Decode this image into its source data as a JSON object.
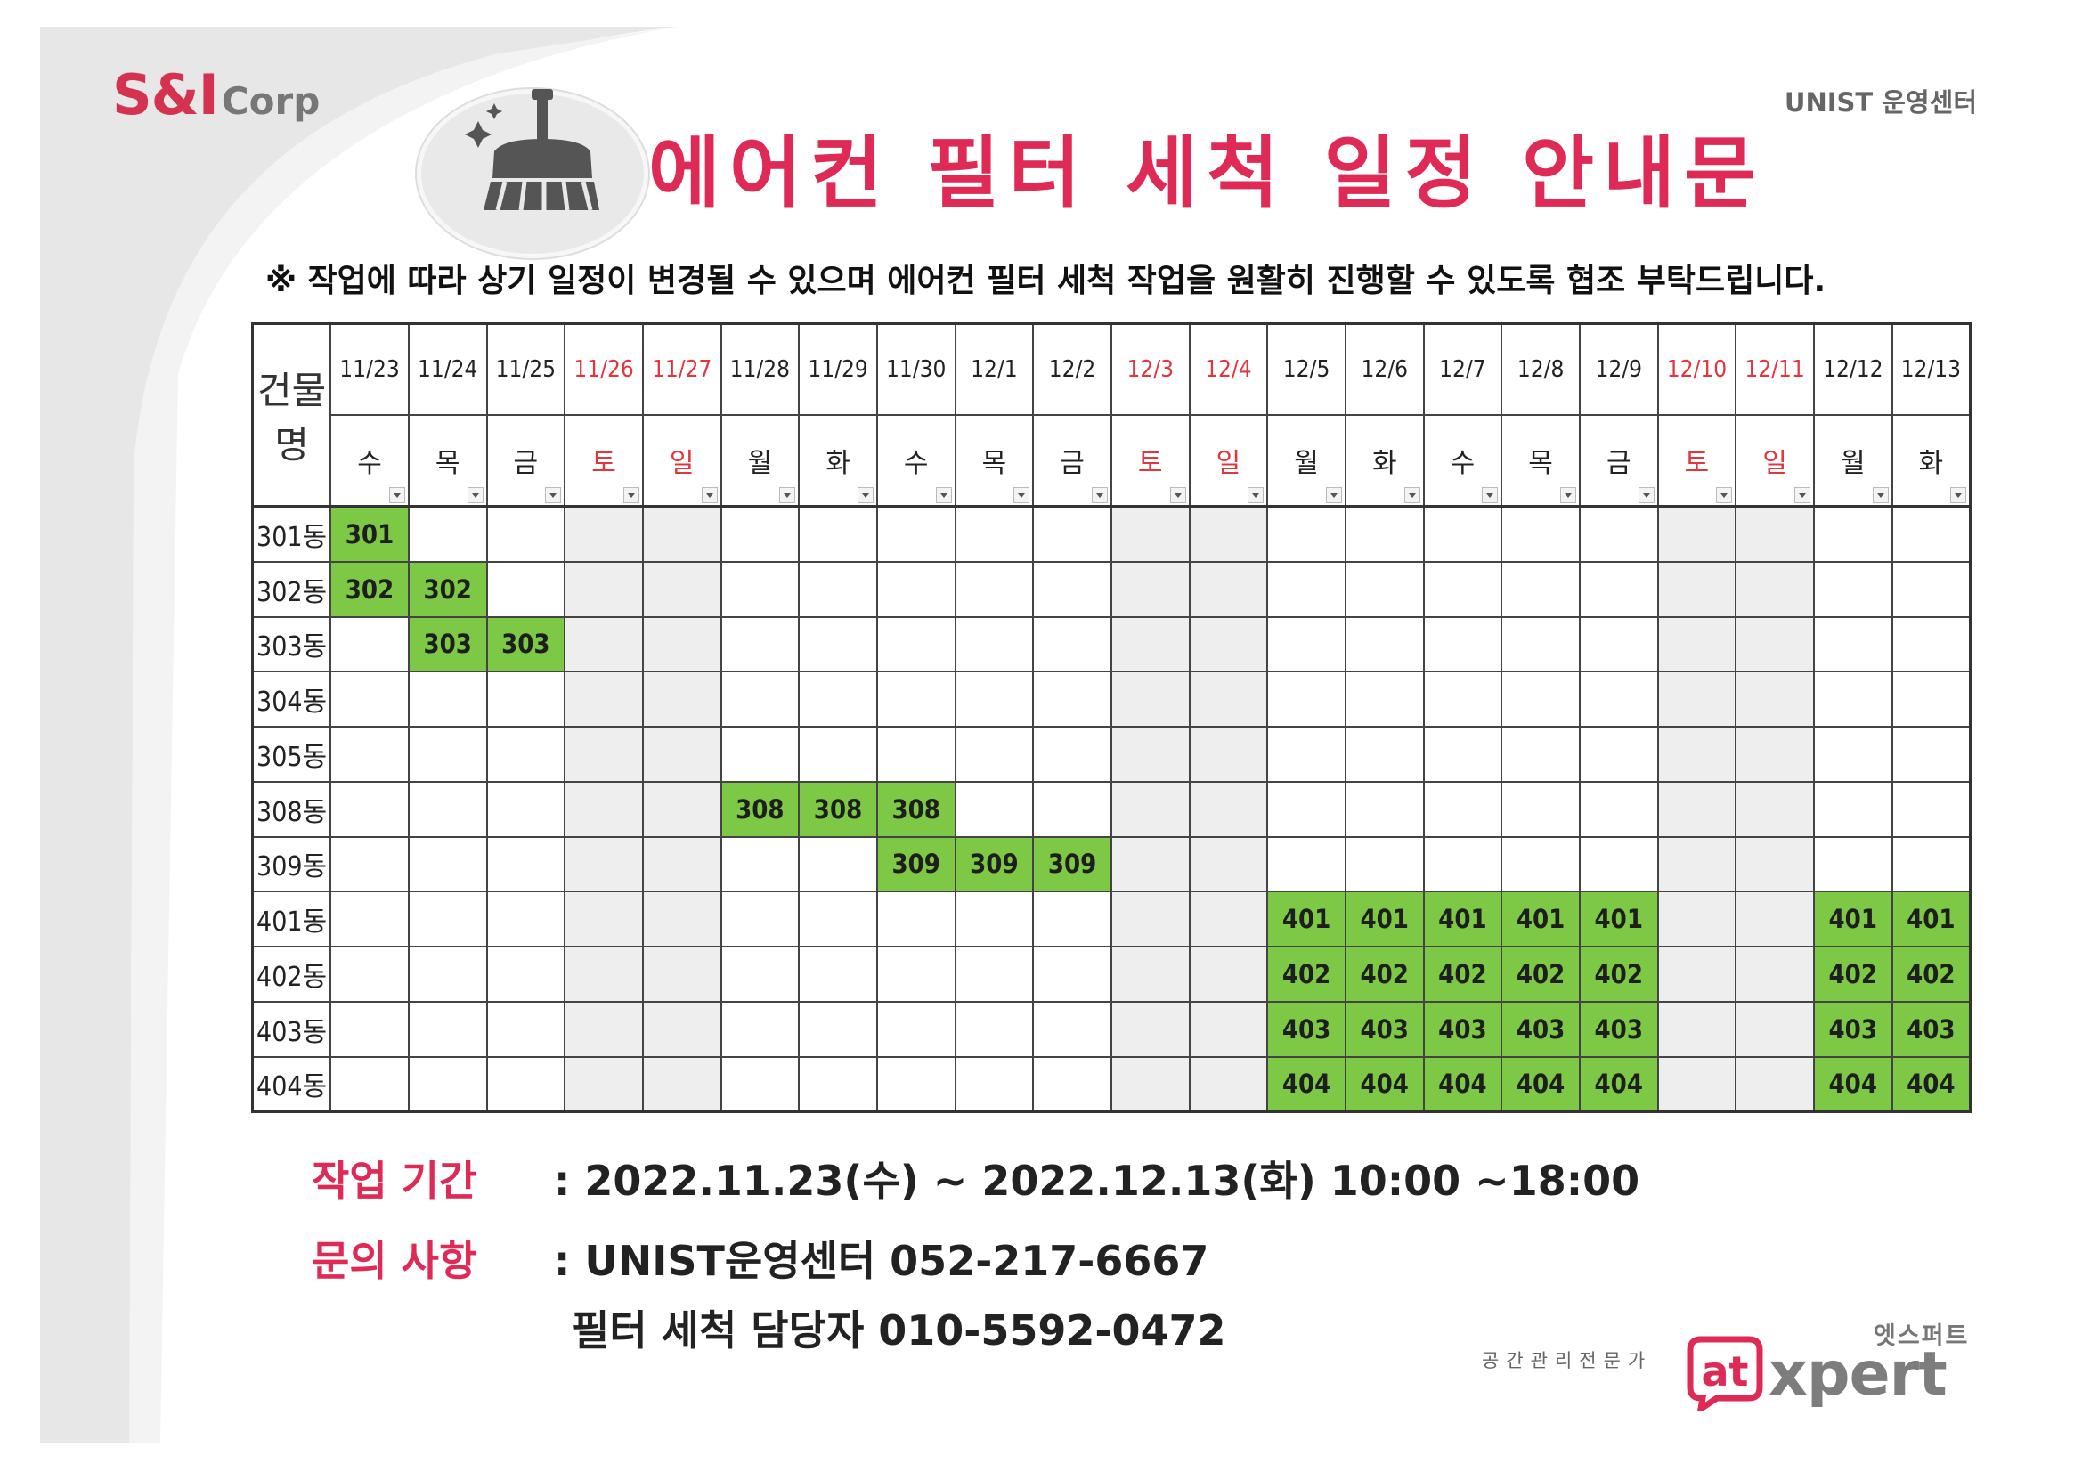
{
  "header": {
    "logo_main": "S&I",
    "logo_sub": "Corp",
    "organization": "UNIST 운영센터",
    "title": "에어컨 필터 세척 일정 안내문",
    "notice": "※ 작업에 따라 상기 일정이 변경될 수 있으며 에어컨 필터 세척 작업을 원활히 진행할 수 있도록 협조 부탁드립니다.",
    "icon": "broom-icon"
  },
  "schedule": {
    "corner_label": "건물명",
    "dates": [
      "11/23",
      "11/24",
      "11/25",
      "11/26",
      "11/27",
      "11/28",
      "11/29",
      "11/30",
      "12/1",
      "12/2",
      "12/3",
      "12/4",
      "12/5",
      "12/6",
      "12/7",
      "12/8",
      "12/9",
      "12/10",
      "12/11",
      "12/12",
      "12/13"
    ],
    "days": [
      "수",
      "목",
      "금",
      "토",
      "일",
      "월",
      "화",
      "수",
      "목",
      "금",
      "토",
      "일",
      "월",
      "화",
      "수",
      "목",
      "금",
      "토",
      "일",
      "월",
      "화"
    ],
    "weekend_color": "#e2353c",
    "highlight_color": "#7dc946",
    "rows": [
      {
        "building": "301동",
        "cells": [
          "301",
          "",
          "",
          "",
          "",
          "",
          "",
          "",
          "",
          "",
          "",
          "",
          "",
          "",
          "",
          "",
          "",
          "",
          "",
          "",
          ""
        ]
      },
      {
        "building": "302동",
        "cells": [
          "302",
          "302",
          "",
          "",
          "",
          "",
          "",
          "",
          "",
          "",
          "",
          "",
          "",
          "",
          "",
          "",
          "",
          "",
          "",
          "",
          ""
        ]
      },
      {
        "building": "303동",
        "cells": [
          "",
          "303",
          "303",
          "",
          "",
          "",
          "",
          "",
          "",
          "",
          "",
          "",
          "",
          "",
          "",
          "",
          "",
          "",
          "",
          "",
          ""
        ]
      },
      {
        "building": "304동",
        "cells": [
          "",
          "",
          "",
          "",
          "",
          "",
          "",
          "",
          "",
          "",
          "",
          "",
          "",
          "",
          "",
          "",
          "",
          "",
          "",
          "",
          ""
        ]
      },
      {
        "building": "305동",
        "cells": [
          "",
          "",
          "",
          "",
          "",
          "",
          "",
          "",
          "",
          "",
          "",
          "",
          "",
          "",
          "",
          "",
          "",
          "",
          "",
          "",
          ""
        ]
      },
      {
        "building": "308동",
        "cells": [
          "",
          "",
          "",
          "",
          "",
          "308",
          "308",
          "308",
          "",
          "",
          "",
          "",
          "",
          "",
          "",
          "",
          "",
          "",
          "",
          "",
          ""
        ]
      },
      {
        "building": "309동",
        "cells": [
          "",
          "",
          "",
          "",
          "",
          "",
          "",
          "309",
          "309",
          "309",
          "",
          "",
          "",
          "",
          "",
          "",
          "",
          "",
          "",
          "",
          ""
        ]
      },
      {
        "building": "401동",
        "cells": [
          "",
          "",
          "",
          "",
          "",
          "",
          "",
          "",
          "",
          "",
          "",
          "",
          "401",
          "401",
          "401",
          "401",
          "401",
          "",
          "",
          "401",
          "401"
        ]
      },
      {
        "building": "402동",
        "cells": [
          "",
          "",
          "",
          "",
          "",
          "",
          "",
          "",
          "",
          "",
          "",
          "",
          "402",
          "402",
          "402",
          "402",
          "402",
          "",
          "",
          "402",
          "402"
        ]
      },
      {
        "building": "403동",
        "cells": [
          "",
          "",
          "",
          "",
          "",
          "",
          "",
          "",
          "",
          "",
          "",
          "",
          "403",
          "403",
          "403",
          "403",
          "403",
          "",
          "",
          "403",
          "403"
        ]
      },
      {
        "building": "404동",
        "cells": [
          "",
          "",
          "",
          "",
          "",
          "",
          "",
          "",
          "",
          "",
          "",
          "",
          "404",
          "404",
          "404",
          "404",
          "404",
          "",
          "",
          "404",
          "404"
        ]
      }
    ]
  },
  "info": {
    "period_label": "작업 기간",
    "period_value": ": 2022.11.23(수) ~ 2022.12.13(화) 10:00 ~18:00",
    "inquiry_label": "문의 사항",
    "inquiry_line1": ": UNIST운영센터 052-217-6667",
    "inquiry_line2": "필터 세척 담당자 010-5592-0472"
  },
  "footer": {
    "tagline": "공간관리전문가",
    "brand_kr": "엣스퍼트",
    "brand_prefix": "at",
    "brand_suffix": "xpert",
    "brand_color": "#df2a55"
  }
}
